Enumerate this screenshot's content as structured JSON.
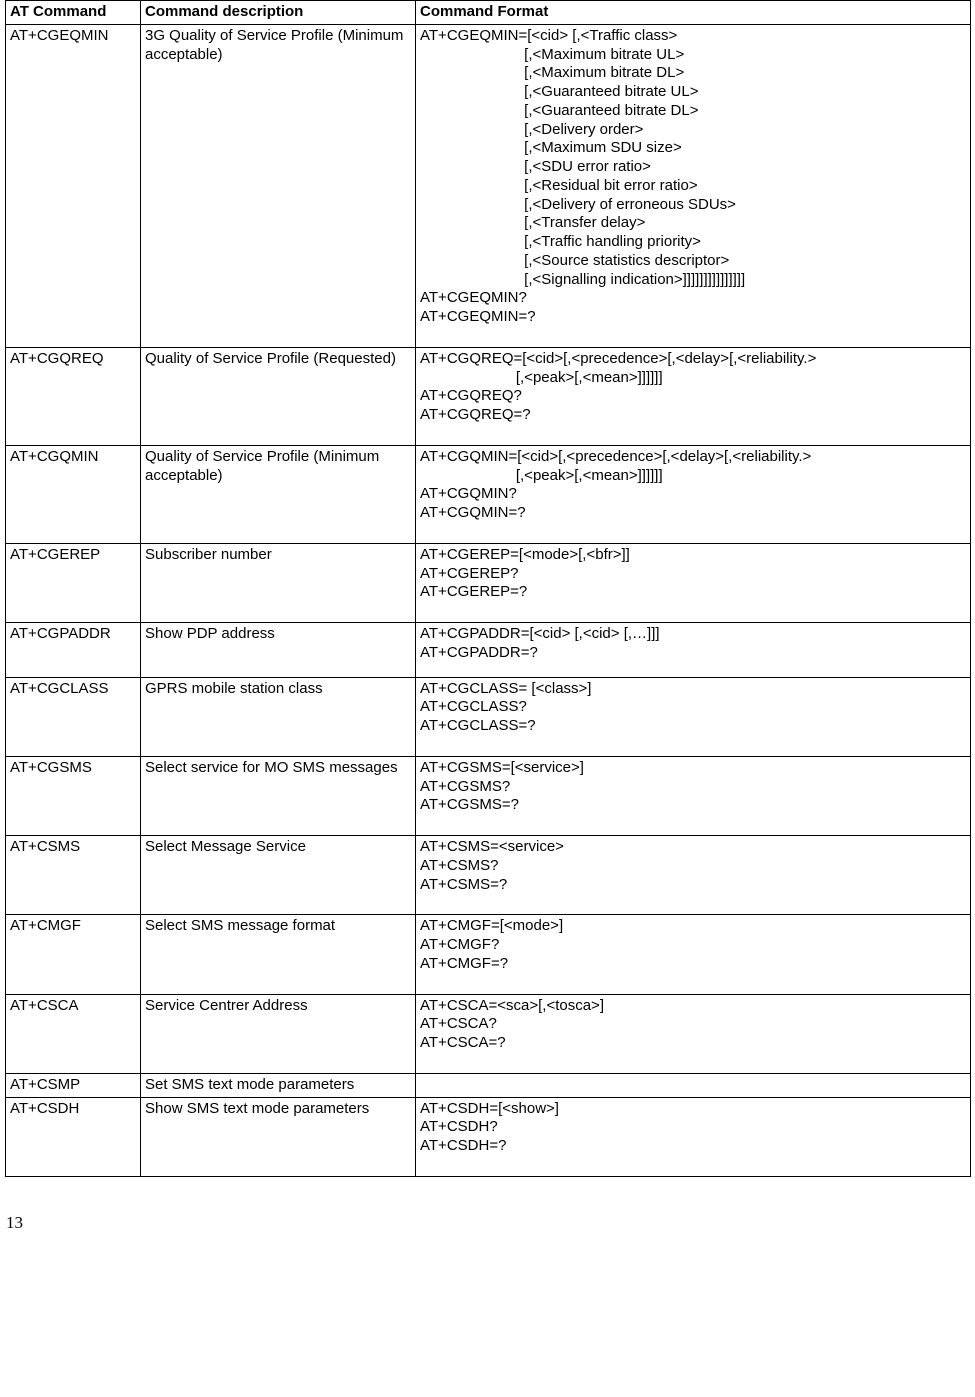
{
  "headers": [
    "AT Command",
    "Command description",
    "Command Format"
  ],
  "rows": [
    {
      "cmd": "AT+CGEQMIN",
      "desc": "3G Quality of Service Profile (Minimum acceptable)",
      "fmt": "AT+CGEQMIN=[<cid> [,<Traffic class>\n                         [,<Maximum bitrate UL>\n                         [,<Maximum bitrate DL>\n                         [,<Guaranteed bitrate UL>\n                         [,<Guaranteed bitrate DL>\n                         [,<Delivery order>\n                         [,<Maximum SDU size>\n                         [,<SDU error ratio>\n                         [,<Residual bit error ratio>\n                         [,<Delivery of erroneous SDUs>\n                         [,<Transfer delay>\n                         [,<Traffic handling priority>\n                         [,<Source statistics descriptor>\n                         [,<Signalling indication>]]]]]]]]]]]]]]]\nAT+CGEQMIN?\nAT+CGEQMIN=?",
      "pad": "pad-bottom"
    },
    {
      "cmd": "AT+CGQREQ",
      "desc": "Quality of Service Profile (Requested)",
      "fmt": "AT+CGQREQ=[<cid>[,<precedence>[,<delay>[,<reliability.>\n                       [,<peak>[,<mean>]]]]]]\nAT+CGQREQ?\nAT+CGQREQ=?",
      "pad": "pad-bottom"
    },
    {
      "cmd": "AT+CGQMIN",
      "desc": "Quality of Service Profile (Minimum acceptable)",
      "fmt": "AT+CGQMIN=[<cid>[,<precedence>[,<delay>[,<reliability.>\n                       [,<peak>[,<mean>]]]]]]\nAT+CGQMIN?\nAT+CGQMIN=?",
      "pad": "pad-bottom"
    },
    {
      "cmd": "AT+CGEREP",
      "desc": "Subscriber number",
      "fmt": "AT+CGEREP=[<mode>[,<bfr>]]\nAT+CGEREP?\nAT+CGEREP=?",
      "pad": "pad-bottom"
    },
    {
      "cmd": "AT+CGPADDR",
      "desc": "Show PDP address",
      "fmt": "AT+CGPADDR=[<cid> [,<cid> [,…]]]\nAT+CGPADDR=?",
      "pad": "pad-bottom-sm"
    },
    {
      "cmd": "AT+CGCLASS",
      "desc": "GPRS mobile station class",
      "fmt": "AT+CGCLASS= [<class>]\nAT+CGCLASS?\nAT+CGCLASS=?",
      "pad": "pad-bottom"
    },
    {
      "cmd": "AT+CGSMS",
      "desc": "Select service for MO SMS messages",
      "fmt": "AT+CGSMS=[<service>]\nAT+CGSMS?\nAT+CGSMS=?",
      "pad": "pad-bottom"
    },
    {
      "cmd": "AT+CSMS",
      "desc": "Select Message Service",
      "fmt": "AT+CSMS=<service>\nAT+CSMS?\nAT+CSMS=?",
      "pad": "pad-bottom"
    },
    {
      "cmd": "AT+CMGF",
      "desc": "Select SMS message format",
      "fmt": "AT+CMGF=[<mode>]\nAT+CMGF?\nAT+CMGF=?",
      "pad": "pad-bottom"
    },
    {
      "cmd": "AT+CSCA",
      "desc": "Service Centrer Address",
      "fmt": "AT+CSCA=<sca>[,<tosca>]\nAT+CSCA?\nAT+CSCA=?",
      "pad": "pad-bottom"
    },
    {
      "cmd": "AT+CSMP",
      "desc": "Set SMS text mode parameters",
      "fmt": " ",
      "pad": ""
    },
    {
      "cmd": "AT+CSDH",
      "desc": "Show SMS text mode parameters",
      "fmt": "AT+CSDH=[<show>]\nAT+CSDH?\nAT+CSDH=?",
      "pad": "pad-bottom"
    }
  ],
  "page_number": "13"
}
